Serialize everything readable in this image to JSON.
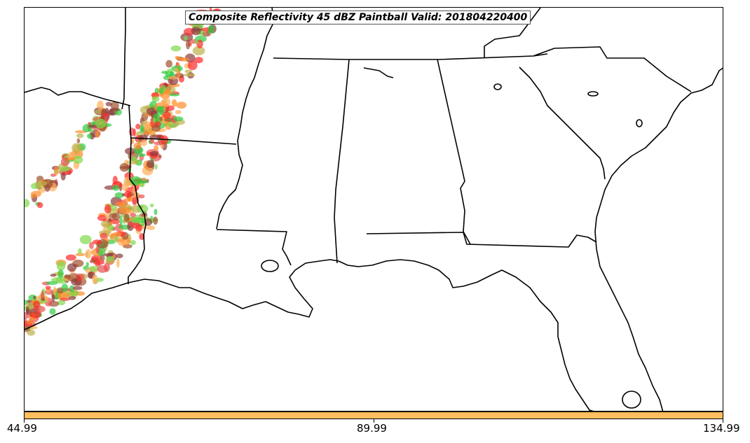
{
  "title": "Composite Reflectivity 45 dBZ Paintball Valid: 201804220400",
  "colorbar": {
    "fill_color": "#ffbf5e",
    "ticks": [
      {
        "id": "min",
        "label": "44.99"
      },
      {
        "id": "mid",
        "label": "89.99"
      },
      {
        "id": "max",
        "label": "134.99"
      }
    ]
  },
  "paintball_colors": [
    "#ff2a2a",
    "#ff8c2a",
    "#ffae5a",
    "#2ecc40",
    "#7fd84a",
    "#a0522d",
    "#8b3a3a",
    "#bdb04a",
    "#e85050"
  ],
  "map": {
    "region": "Southeastern United States",
    "boundary_color": "#000000",
    "background": "#ffffff"
  }
}
